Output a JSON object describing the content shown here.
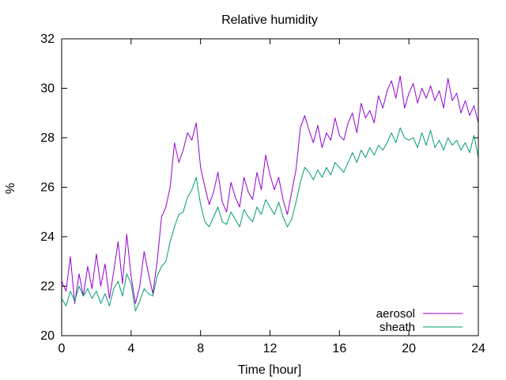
{
  "chart_data": {
    "type": "line",
    "title": "Relative humidity",
    "xlabel": "Time [hour]",
    "ylabel": "%",
    "xlim": [
      0,
      24
    ],
    "ylim": [
      20,
      32
    ],
    "xticks": [
      0,
      4,
      8,
      12,
      16,
      20,
      24
    ],
    "yticks": [
      20,
      22,
      24,
      26,
      28,
      30,
      32
    ],
    "grid": false,
    "legend_position": "bottom-right",
    "series": [
      {
        "name": "aerosol",
        "color": "#9400d3",
        "x": [
          0,
          0.25,
          0.5,
          0.75,
          1,
          1.25,
          1.5,
          1.75,
          2,
          2.25,
          2.5,
          2.75,
          3,
          3.25,
          3.5,
          3.75,
          4,
          4.25,
          4.5,
          4.75,
          5,
          5.25,
          5.5,
          5.75,
          6,
          6.25,
          6.5,
          6.75,
          7,
          7.25,
          7.5,
          7.75,
          8,
          8.25,
          8.5,
          8.75,
          9,
          9.25,
          9.5,
          9.75,
          10,
          10.25,
          10.5,
          10.75,
          11,
          11.25,
          11.5,
          11.75,
          12,
          12.25,
          12.5,
          12.75,
          13,
          13.25,
          13.5,
          13.75,
          14,
          14.25,
          14.5,
          14.75,
          15,
          15.25,
          15.5,
          15.75,
          16,
          16.25,
          16.5,
          16.75,
          17,
          17.25,
          17.5,
          17.75,
          18,
          18.25,
          18.5,
          18.75,
          19,
          19.25,
          19.5,
          19.75,
          20,
          20.25,
          20.5,
          20.75,
          21,
          21.25,
          21.5,
          21.75,
          22,
          22.25,
          22.5,
          22.75,
          23,
          23.25,
          23.5,
          23.75,
          24
        ],
        "values": [
          22.2,
          21.8,
          23.2,
          21.3,
          22.5,
          21.6,
          22.8,
          21.9,
          23.3,
          22.0,
          22.9,
          21.5,
          22.6,
          23.8,
          22.1,
          24.1,
          22.4,
          21.3,
          22.0,
          23.4,
          22.5,
          21.7,
          23.0,
          24.8,
          25.2,
          26.0,
          27.8,
          27.0,
          27.5,
          28.2,
          27.9,
          28.6,
          26.8,
          26.0,
          25.3,
          25.8,
          26.6,
          25.4,
          25.0,
          26.2,
          25.6,
          25.2,
          26.4,
          25.8,
          25.5,
          26.6,
          25.9,
          27.3,
          26.5,
          25.9,
          26.4,
          25.5,
          24.9,
          25.8,
          26.7,
          28.4,
          28.9,
          28.3,
          27.8,
          28.5,
          27.6,
          28.2,
          27.9,
          28.8,
          28.1,
          27.9,
          28.6,
          29.0,
          28.2,
          29.4,
          28.8,
          29.1,
          28.6,
          29.7,
          29.2,
          29.9,
          30.3,
          29.6,
          30.5,
          29.2,
          29.8,
          30.2,
          29.4,
          30.0,
          29.6,
          30.1,
          29.5,
          29.9,
          29.2,
          30.4,
          29.5,
          29.8,
          29.0,
          29.5,
          28.9,
          29.3,
          28.6
        ]
      },
      {
        "name": "sheath",
        "color": "#009e73",
        "x": [
          0,
          0.25,
          0.5,
          0.75,
          1,
          1.25,
          1.5,
          1.75,
          2,
          2.25,
          2.5,
          2.75,
          3,
          3.25,
          3.5,
          3.75,
          4,
          4.25,
          4.5,
          4.75,
          5,
          5.25,
          5.5,
          5.75,
          6,
          6.25,
          6.5,
          6.75,
          7,
          7.25,
          7.5,
          7.75,
          8,
          8.25,
          8.5,
          8.75,
          9,
          9.25,
          9.5,
          9.75,
          10,
          10.25,
          10.5,
          10.75,
          11,
          11.25,
          11.5,
          11.75,
          12,
          12.25,
          12.5,
          12.75,
          13,
          13.25,
          13.5,
          13.75,
          14,
          14.25,
          14.5,
          14.75,
          15,
          15.25,
          15.5,
          15.75,
          16,
          16.25,
          16.5,
          16.75,
          17,
          17.25,
          17.5,
          17.75,
          18,
          18.25,
          18.5,
          18.75,
          19,
          19.25,
          19.5,
          19.75,
          20,
          20.25,
          20.5,
          20.75,
          21,
          21.25,
          21.5,
          21.75,
          22,
          22.25,
          22.5,
          22.75,
          23,
          23.25,
          23.5,
          23.75,
          24
        ],
        "values": [
          21.5,
          21.2,
          21.8,
          21.4,
          22.0,
          21.6,
          21.9,
          21.5,
          21.8,
          21.3,
          21.7,
          21.2,
          21.9,
          22.2,
          21.6,
          22.5,
          22.1,
          21.0,
          21.4,
          21.9,
          21.7,
          21.6,
          22.4,
          22.8,
          23.0,
          23.8,
          24.4,
          24.9,
          25.0,
          25.6,
          25.9,
          26.4,
          25.3,
          24.6,
          24.4,
          24.8,
          25.2,
          24.6,
          24.5,
          25.0,
          24.7,
          24.4,
          25.1,
          24.8,
          24.6,
          25.2,
          24.9,
          25.5,
          25.2,
          24.9,
          25.4,
          24.8,
          24.4,
          24.7,
          25.4,
          26.2,
          26.8,
          26.6,
          26.3,
          26.7,
          26.4,
          26.8,
          26.5,
          27.0,
          26.8,
          26.6,
          27.0,
          27.4,
          27.0,
          27.5,
          27.2,
          27.6,
          27.3,
          27.7,
          27.5,
          27.8,
          28.2,
          27.8,
          28.4,
          28.0,
          27.9,
          28.0,
          27.6,
          28.2,
          27.7,
          28.3,
          27.6,
          27.9,
          27.5,
          28.0,
          27.7,
          27.9,
          27.5,
          27.8,
          27.4,
          28.1,
          27.2
        ]
      }
    ]
  }
}
